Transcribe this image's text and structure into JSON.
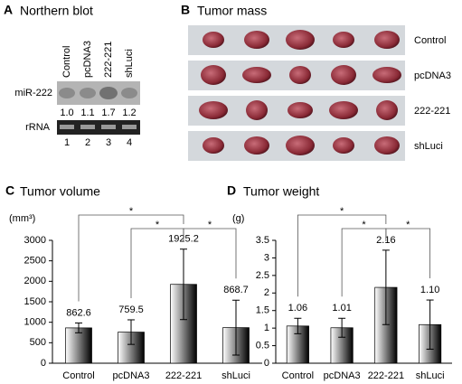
{
  "panel_a": {
    "label": "A",
    "title": "Northern blot",
    "lanes": [
      "Control",
      "pcDNA3",
      "222-221",
      "shLuci"
    ],
    "rows": [
      "miR-222",
      "rRNA"
    ],
    "ratios": [
      "1.0",
      "1.1",
      "1.7",
      "1.2"
    ],
    "lane_numbers": [
      "1",
      "2",
      "3",
      "4"
    ]
  },
  "panel_b": {
    "label": "B",
    "title": "Tumor mass",
    "rows": [
      "Control",
      "pcDNA3",
      "222-221",
      "shLuci"
    ]
  },
  "chart_data": [
    {
      "type": "bar",
      "panel": "C",
      "title": "Tumor volume",
      "y_unit": "(mm³)",
      "categories": [
        "Control",
        "pcDNA3",
        "222-221",
        "shLuci"
      ],
      "values": [
        862.6,
        759.5,
        1925.2,
        868.7
      ],
      "errors": [
        120,
        300,
        860,
        670
      ],
      "color": "#000000",
      "ylim": [
        0,
        3000
      ],
      "yticks": [
        0,
        500,
        1000,
        1500,
        2000,
        2500,
        3000
      ],
      "annotations": [
        "*",
        "*",
        "*"
      ]
    },
    {
      "type": "bar",
      "panel": "D",
      "title": "Tumor weight",
      "y_unit": "(g)",
      "categories": [
        "Control",
        "pcDNA3",
        "222-221",
        "shLuci"
      ],
      "values": [
        1.06,
        1.01,
        2.16,
        1.1
      ],
      "value_labels": [
        "1.06",
        "1.01",
        "2.16",
        "1.10"
      ],
      "errors": [
        0.22,
        0.27,
        1.06,
        0.7
      ],
      "color": "#000000",
      "ylim": [
        0,
        3.5
      ],
      "yticks": [
        0,
        0.5,
        1,
        1.5,
        2,
        2.5,
        3,
        3.5
      ],
      "annotations": [
        "*",
        "*",
        "*"
      ]
    }
  ]
}
